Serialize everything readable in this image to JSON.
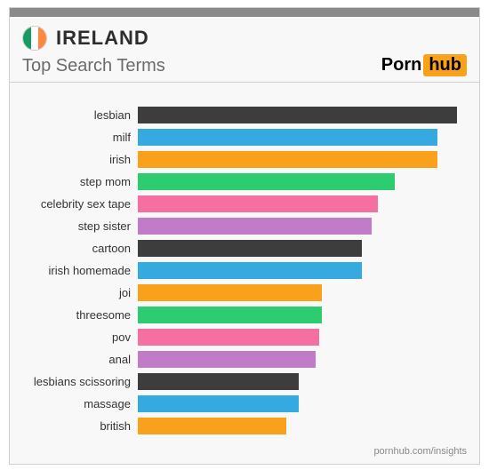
{
  "country": "IRELAND",
  "subtitle": "Top Search Terms",
  "logo": {
    "part1": "Porn",
    "part2": "hub"
  },
  "footer": "pornhub.com/insights",
  "flag_colors": [
    "#169b62",
    "#ffffff",
    "#ff883e"
  ],
  "background_color": "#f8f8f8",
  "topbar_color": "#8a8a8a",
  "chart": {
    "type": "bar",
    "max_value": 100,
    "bars": [
      {
        "label": "lesbian",
        "value": 97,
        "color": "#3d3d3d"
      },
      {
        "label": "milf",
        "value": 91,
        "color": "#34aae0"
      },
      {
        "label": "irish",
        "value": 91,
        "color": "#f9a11b"
      },
      {
        "label": "step mom",
        "value": 78,
        "color": "#2ecc71"
      },
      {
        "label": "celebrity sex tape",
        "value": 73,
        "color": "#f56fa1"
      },
      {
        "label": "step sister",
        "value": 71,
        "color": "#c07cc6"
      },
      {
        "label": "cartoon",
        "value": 68,
        "color": "#3d3d3d"
      },
      {
        "label": "irish homemade",
        "value": 68,
        "color": "#34aae0"
      },
      {
        "label": "joi",
        "value": 56,
        "color": "#f9a11b"
      },
      {
        "label": "threesome",
        "value": 56,
        "color": "#2ecc71"
      },
      {
        "label": "pov",
        "value": 55,
        "color": "#f56fa1"
      },
      {
        "label": "anal",
        "value": 54,
        "color": "#c07cc6"
      },
      {
        "label": "lesbians scissoring",
        "value": 49,
        "color": "#3d3d3d"
      },
      {
        "label": "massage",
        "value": 49,
        "color": "#34aae0"
      },
      {
        "label": "british",
        "value": 45,
        "color": "#f9a11b"
      }
    ]
  }
}
